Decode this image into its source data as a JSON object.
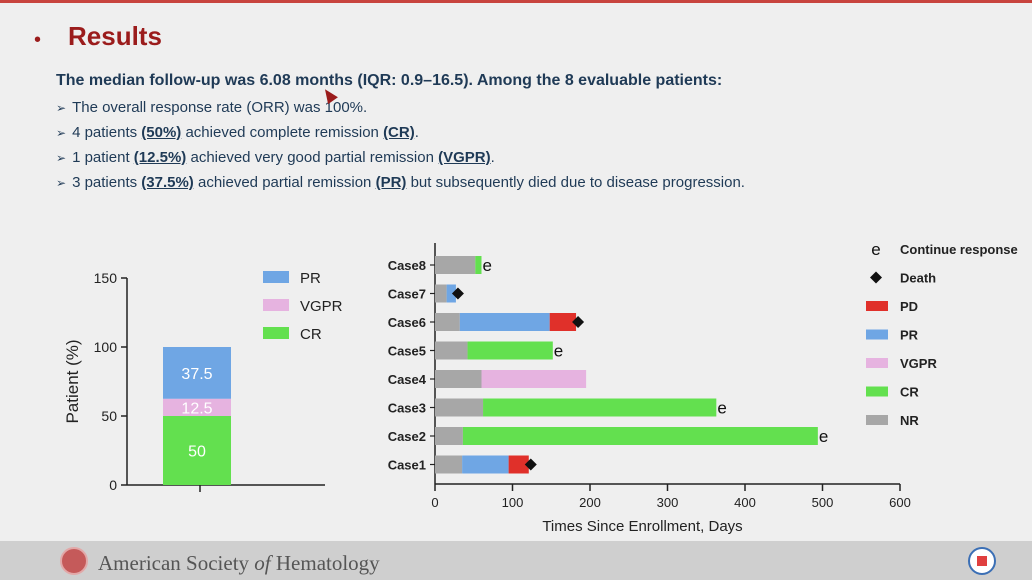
{
  "slide": {
    "bullet": "•",
    "title": "Results",
    "summary": "The median follow-up was 6.08 months (IQR: 0.9–16.5). Among the 8 evaluable patients:",
    "points": [
      {
        "segments": [
          {
            "t": "The overall response rate (ORR) was 100%.",
            "em": false
          }
        ]
      },
      {
        "segments": [
          {
            "t": "4 patients ",
            "em": false
          },
          {
            "t": "(50%)",
            "em": true
          },
          {
            "t": " achieved complete remission ",
            "em": false
          },
          {
            "t": "(CR)",
            "em": true
          },
          {
            "t": ".",
            "em": false
          }
        ]
      },
      {
        "segments": [
          {
            "t": "1 patient ",
            "em": false
          },
          {
            "t": "(12.5%)",
            "em": true
          },
          {
            "t": " achieved very good partial remission ",
            "em": false
          },
          {
            "t": "(VGPR)",
            "em": true
          },
          {
            "t": ".",
            "em": false
          }
        ]
      },
      {
        "segments": [
          {
            "t": "3 patients ",
            "em": false
          },
          {
            "t": "(37.5%)",
            "em": true
          },
          {
            "t": " achieved partial remission ",
            "em": false
          },
          {
            "t": "(PR)",
            "em": true
          },
          {
            "t": " but subsequently died due to disease progression.",
            "em": false
          }
        ]
      }
    ],
    "arrow_glyph": "➢"
  },
  "footer": {
    "org_prefix": "American Society ",
    "org_of": "of",
    "org_suffix": " Hematology"
  },
  "colors": {
    "PR": "#6fa6e4",
    "VGPR": "#e6b3e0",
    "CR": "#63e04f",
    "PD": "#e0302a",
    "NR": "#a7a7a7",
    "accent": "#9b1c1c"
  },
  "chart_data": [
    {
      "type": "bar",
      "stacked": true,
      "categories": [
        ""
      ],
      "ylabel": "Patient (%)",
      "ylim": [
        0,
        150
      ],
      "yticks": [
        0,
        50,
        100,
        150
      ],
      "series": [
        {
          "name": "CR",
          "values": [
            50
          ],
          "label": "50"
        },
        {
          "name": "VGPR",
          "values": [
            12.5
          ],
          "label": "12.5"
        },
        {
          "name": "PR",
          "values": [
            37.5
          ],
          "label": "37.5"
        }
      ],
      "legend": [
        "PR",
        "VGPR",
        "CR"
      ],
      "legend_position": "right"
    },
    {
      "type": "bar",
      "orientation": "horizontal",
      "stacked": true,
      "xlabel": "Times Since Enrollment, Days",
      "xlim": [
        0,
        600
      ],
      "xticks": [
        0,
        100,
        200,
        300,
        400,
        500,
        600
      ],
      "cases": [
        {
          "name": "Case8",
          "segments": [
            [
              "NR",
              0,
              52
            ],
            [
              "CR",
              52,
              60
            ]
          ],
          "marker": "e",
          "marker_at": 60
        },
        {
          "name": "Case7",
          "segments": [
            [
              "NR",
              0,
              15
            ],
            [
              "PR",
              15,
              27
            ]
          ],
          "marker": "Death",
          "marker_at": 27
        },
        {
          "name": "Case6",
          "segments": [
            [
              "NR",
              0,
              32
            ],
            [
              "PR",
              32,
              148
            ],
            [
              "PD",
              148,
              182
            ]
          ],
          "marker": "Death",
          "marker_at": 182
        },
        {
          "name": "Case5",
          "segments": [
            [
              "NR",
              0,
              42
            ],
            [
              "CR",
              42,
              152
            ]
          ],
          "marker": "e",
          "marker_at": 152
        },
        {
          "name": "Case4",
          "segments": [
            [
              "NR",
              0,
              60
            ],
            [
              "VGPR",
              60,
              195
            ]
          ],
          "marker": null,
          "marker_at": null
        },
        {
          "name": "Case3",
          "segments": [
            [
              "NR",
              0,
              62
            ],
            [
              "CR",
              62,
              363
            ]
          ],
          "marker": "e",
          "marker_at": 363
        },
        {
          "name": "Case2",
          "segments": [
            [
              "NR",
              0,
              36
            ],
            [
              "CR",
              36,
              494
            ]
          ],
          "marker": "e",
          "marker_at": 494
        },
        {
          "name": "Case1",
          "segments": [
            [
              "NR",
              0,
              35
            ],
            [
              "PR",
              35,
              95
            ],
            [
              "PD",
              95,
              121
            ]
          ],
          "marker": "Death",
          "marker_at": 121
        }
      ],
      "legend": [
        {
          "key": "e",
          "label": "Continue response",
          "kind": "text"
        },
        {
          "key": "Death",
          "label": "Death",
          "kind": "diamond"
        },
        {
          "key": "PD",
          "label": "PD",
          "kind": "box"
        },
        {
          "key": "PR",
          "label": "PR",
          "kind": "box"
        },
        {
          "key": "VGPR",
          "label": "VGPR",
          "kind": "box"
        },
        {
          "key": "CR",
          "label": "CR",
          "kind": "box"
        },
        {
          "key": "NR",
          "label": "NR",
          "kind": "box"
        }
      ],
      "legend_position": "right"
    }
  ]
}
